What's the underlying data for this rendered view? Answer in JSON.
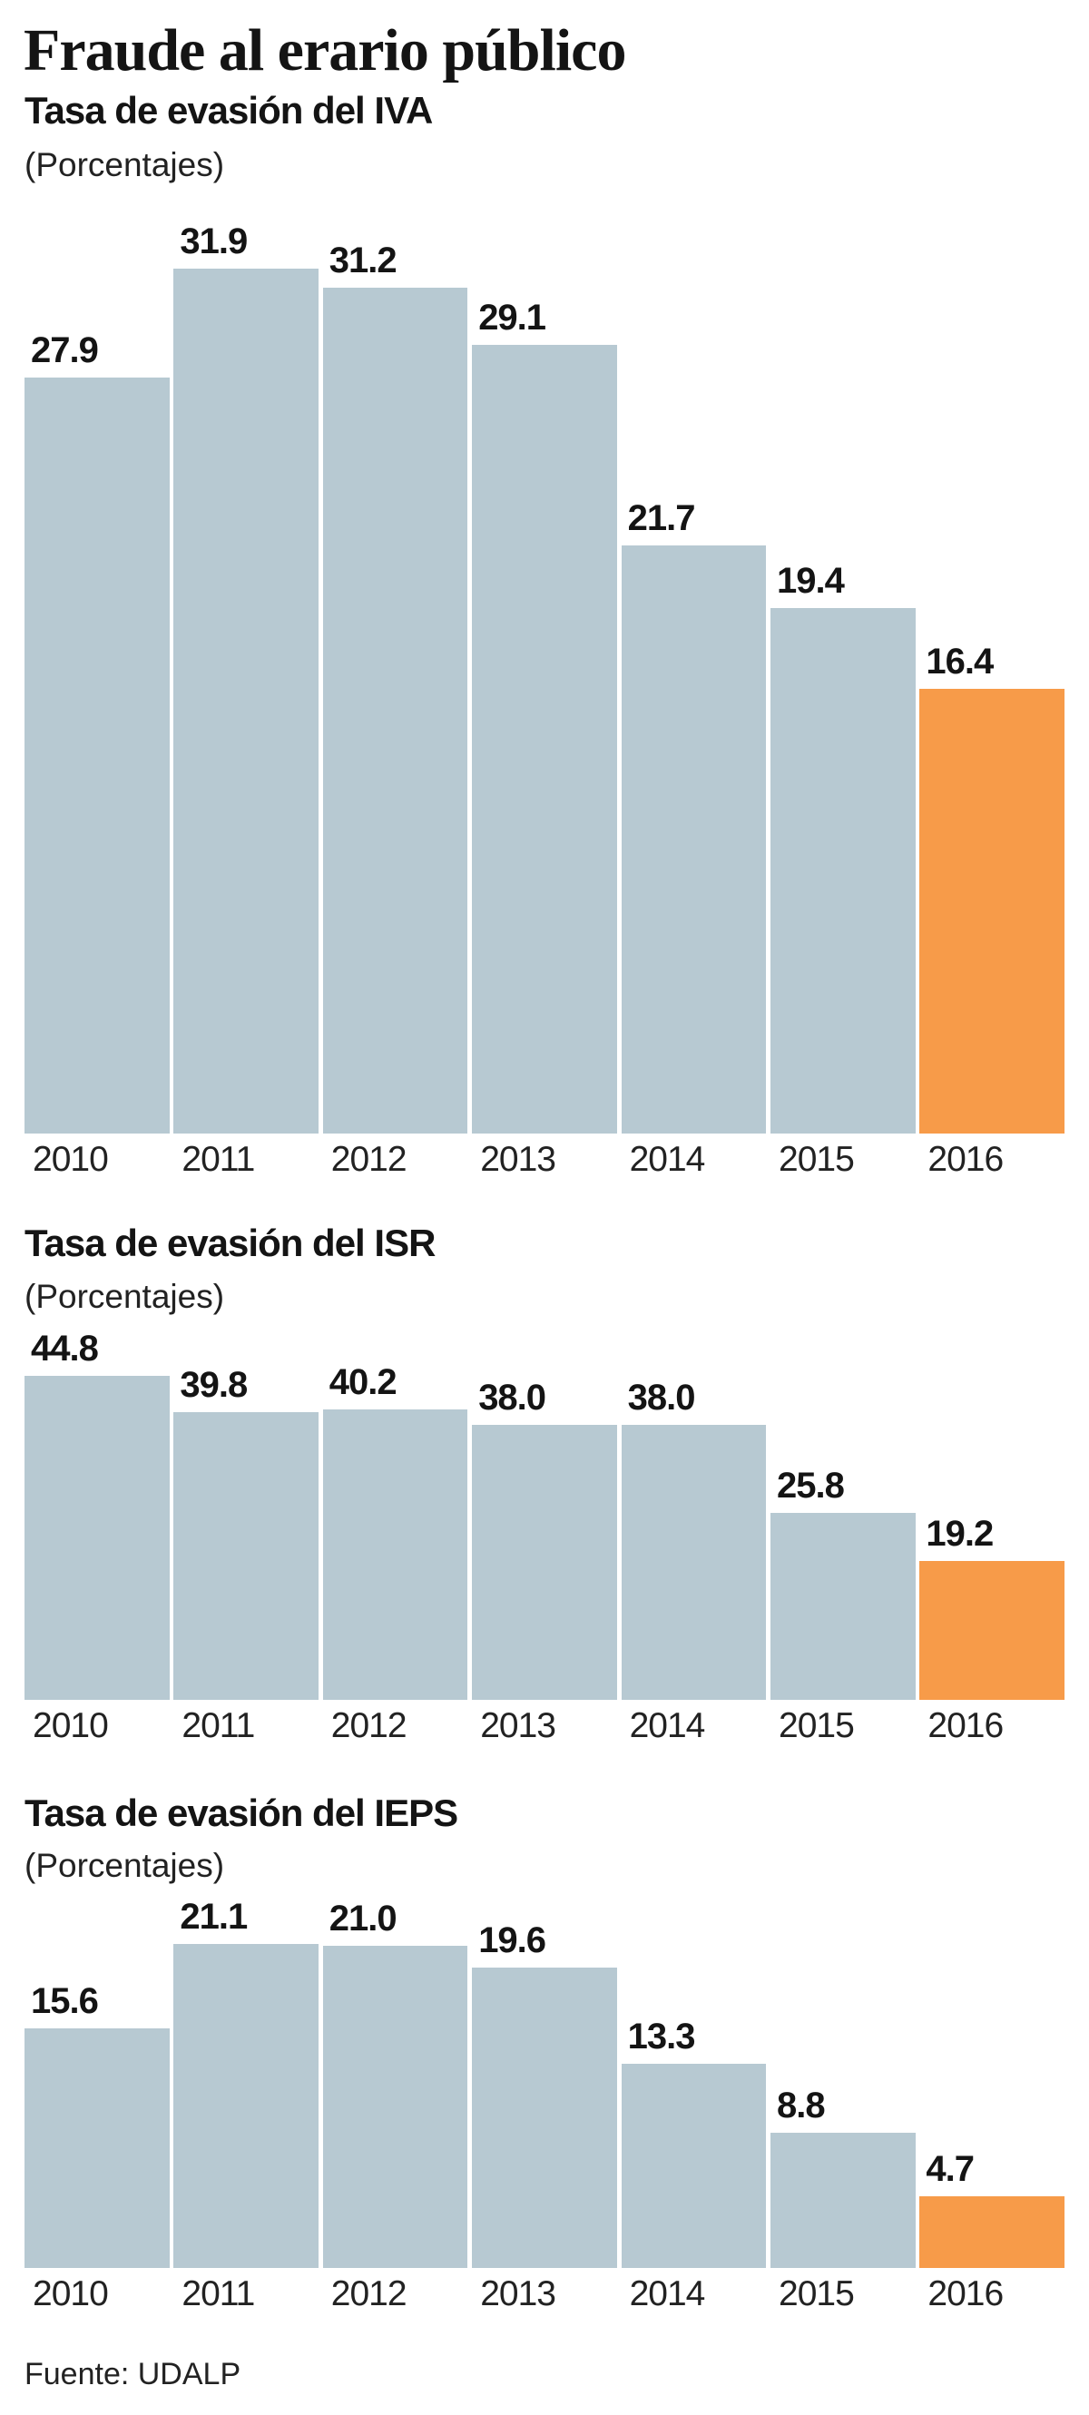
{
  "title": "Fraude al erario público",
  "source": "Fuente: UDALP",
  "colors": {
    "bar": "#b7c9d2",
    "highlight": "#f79b49",
    "text": "#141414"
  },
  "chart_data": [
    {
      "type": "bar",
      "title": "Tasa de evasión del IVA",
      "subtitle": "(Porcentajes)",
      "categories": [
        "2010",
        "2011",
        "2012",
        "2013",
        "2014",
        "2015",
        "2016"
      ],
      "values": [
        27.9,
        31.9,
        31.2,
        29.1,
        21.7,
        19.4,
        16.4
      ],
      "labels": [
        "27.9",
        "31.9",
        "31.2",
        "29.1",
        "21.7",
        "19.4",
        "16.4"
      ],
      "highlight": "2016",
      "grid": false
    },
    {
      "type": "bar",
      "title": "Tasa de evasión del ISR",
      "subtitle": "(Porcentajes)",
      "categories": [
        "2010",
        "2011",
        "2012",
        "2013",
        "2014",
        "2015",
        "2016"
      ],
      "values": [
        44.8,
        39.8,
        40.2,
        38.0,
        38.0,
        25.8,
        19.2
      ],
      "labels": [
        "44.8",
        "39.8",
        "40.2",
        "38.0",
        "38.0",
        "25.8",
        "19.2"
      ],
      "highlight": "2016",
      "grid": false
    },
    {
      "type": "bar",
      "title": "Tasa de evasión del IEPS",
      "subtitle": "(Porcentajes)",
      "categories": [
        "2010",
        "2011",
        "2012",
        "2013",
        "2014",
        "2015",
        "2016"
      ],
      "values": [
        15.6,
        21.1,
        21.0,
        19.6,
        13.3,
        8.8,
        4.7
      ],
      "labels": [
        "15.6",
        "21.1",
        "21.0",
        "19.6",
        "13.3",
        "8.8",
        "4.7"
      ],
      "highlight": "2016",
      "grid": false
    }
  ]
}
